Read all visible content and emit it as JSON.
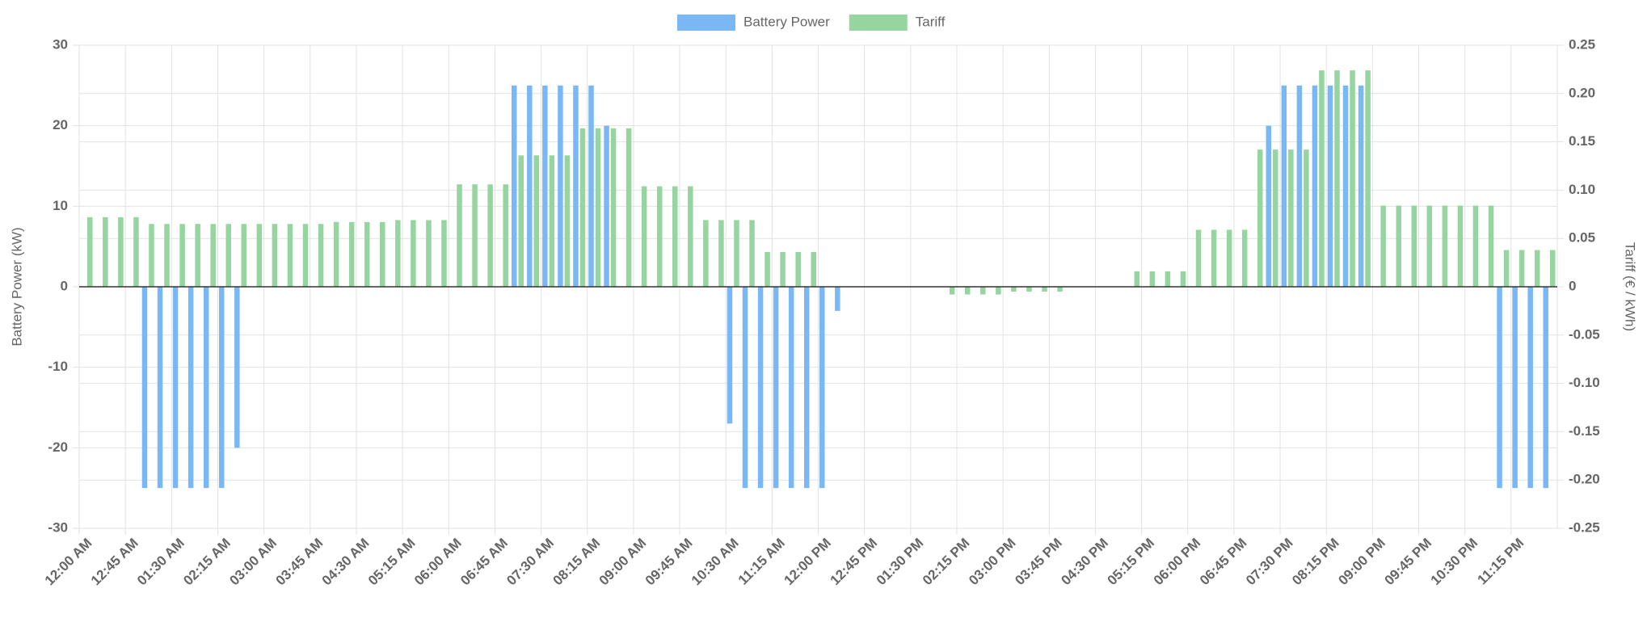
{
  "chart_data": {
    "type": "bar",
    "categories": [
      "12:00 AM",
      null,
      null,
      "12:45 AM",
      null,
      null,
      "01:30 AM",
      null,
      null,
      "02:15 AM",
      null,
      null,
      "03:00 AM",
      null,
      null,
      "03:45 AM",
      null,
      null,
      "04:30 AM",
      null,
      null,
      "05:15 AM",
      null,
      null,
      "06:00 AM",
      null,
      null,
      "06:45 AM",
      null,
      null,
      "07:30 AM",
      null,
      null,
      "08:15 AM",
      null,
      null,
      "09:00 AM",
      null,
      null,
      "09:45 AM",
      null,
      null,
      "10:30 AM",
      null,
      null,
      "11:15 AM",
      null,
      null,
      "12:00 PM",
      null,
      null,
      "12:45 PM",
      null,
      null,
      "01:30 PM",
      null,
      null,
      "02:15 PM",
      null,
      null,
      "03:00 PM",
      null,
      null,
      "03:45 PM",
      null,
      null,
      "04:30 PM",
      null,
      null,
      "05:15 PM",
      null,
      null,
      "06:00 PM",
      null,
      null,
      "06:45 PM",
      null,
      null,
      "07:30 PM",
      null,
      null,
      "08:15 PM",
      null,
      null,
      "09:00 PM",
      null,
      null,
      "09:45 PM",
      null,
      null,
      "10:30 PM",
      null,
      null,
      "11:15 PM",
      null,
      null
    ],
    "series": [
      {
        "name": "Battery Power",
        "color": "#7ab8f5",
        "values": [
          0,
          0,
          0,
          0,
          -25,
          -25,
          -25,
          -25,
          -25,
          -25,
          -20,
          0,
          0,
          0,
          0,
          0,
          0,
          0,
          0,
          0,
          0,
          0,
          0,
          0,
          0,
          0,
          0,
          0,
          25,
          25,
          25,
          25,
          25,
          25,
          20,
          0,
          0,
          0,
          0,
          0,
          0,
          0,
          -17,
          -25,
          -25,
          -25,
          -25,
          -25,
          -25,
          -3,
          0,
          0,
          0,
          0,
          0,
          0,
          0,
          0,
          0,
          0,
          0,
          0,
          0,
          0,
          0,
          0,
          0,
          0,
          0,
          0,
          0,
          0,
          0,
          0,
          0,
          0,
          0,
          20,
          25,
          25,
          25,
          25,
          25,
          25,
          0,
          0,
          0,
          0,
          0,
          0,
          0,
          0,
          -25,
          -25,
          -25,
          -25
        ]
      },
      {
        "name": "Tariff",
        "color": "#96d4a0",
        "axis": "y2",
        "values": [
          0.072,
          0.072,
          0.072,
          0.072,
          0.065,
          0.065,
          0.065,
          0.065,
          0.065,
          0.065,
          0.065,
          0.065,
          0.065,
          0.065,
          0.065,
          0.065,
          0.067,
          0.067,
          0.067,
          0.067,
          0.069,
          0.069,
          0.069,
          0.069,
          0.106,
          0.106,
          0.106,
          0.106,
          0.136,
          0.136,
          0.136,
          0.136,
          0.164,
          0.164,
          0.164,
          0.164,
          0.104,
          0.104,
          0.104,
          0.104,
          0.069,
          0.069,
          0.069,
          0.069,
          0.036,
          0.036,
          0.036,
          0.036,
          0,
          0,
          0,
          0,
          0,
          0,
          0,
          0,
          -0.008,
          -0.008,
          -0.008,
          -0.008,
          -0.005,
          -0.005,
          -0.005,
          -0.005,
          0,
          0,
          0,
          0,
          0.016,
          0.016,
          0.016,
          0.016,
          0.059,
          0.059,
          0.059,
          0.059,
          0.142,
          0.142,
          0.142,
          0.142,
          0.224,
          0.224,
          0.224,
          0.224,
          0.084,
          0.084,
          0.084,
          0.084,
          0.084,
          0.084,
          0.084,
          0.084,
          0.038,
          0.038,
          0.038,
          0.038
        ]
      }
    ],
    "ylabel": "Battery Power (kW)",
    "y2label": "Tariff (€ / kWh)",
    "ylim": [
      -30,
      30
    ],
    "yticks": [
      -30,
      -20,
      -10,
      0,
      10,
      20,
      30
    ],
    "y2lim": [
      -0.25,
      0.25
    ],
    "y2ticks": [
      -0.25,
      {
        "value": -0.2,
        "label": "-0.20"
      },
      -0.15,
      {
        "value": -0.1,
        "label": "-0.10"
      },
      -0.05,
      0,
      0.05,
      {
        "value": 0.1,
        "label": "0.10"
      },
      0.15,
      {
        "value": 0.2,
        "label": "0.20"
      },
      0.25
    ],
    "grid": true,
    "legend": "top"
  }
}
